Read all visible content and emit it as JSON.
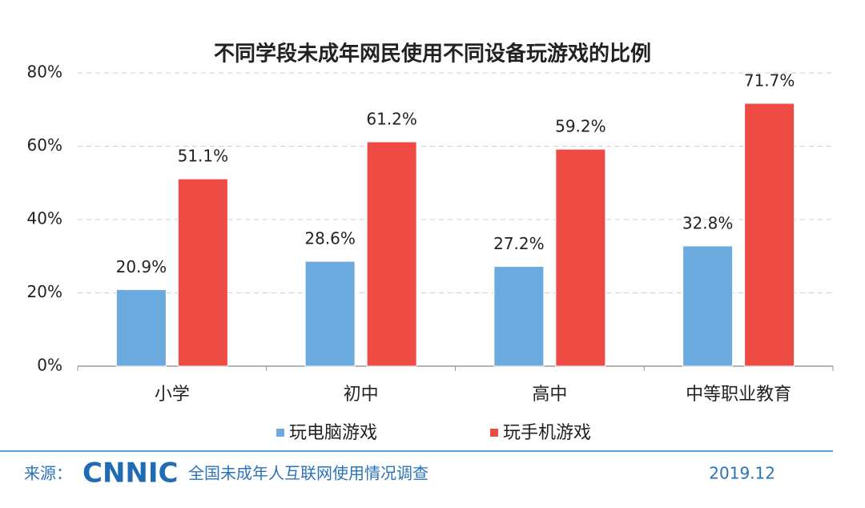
{
  "chart_data": {
    "type": "bar",
    "title": "不同学段未成年网民使用不同设备玩游戏的比例",
    "categories": [
      "小学",
      "初中",
      "高中",
      "中等职业教育"
    ],
    "series": [
      {
        "name": "玩电脑游戏",
        "color": "#6aaade",
        "values": [
          20.9,
          28.6,
          27.2,
          32.8
        ],
        "value_labels": [
          "20.9%",
          "28.6%",
          "27.2%",
          "32.8%"
        ]
      },
      {
        "name": "玩手机游戏",
        "color": "#ee4b44",
        "values": [
          51.1,
          61.2,
          59.2,
          71.7
        ],
        "value_labels": [
          "51.1%",
          "61.2%",
          "59.2%",
          "71.7%"
        ]
      }
    ],
    "ylim": [
      0,
      80
    ],
    "yticks": [
      {
        "value": 0,
        "label": "0%"
      },
      {
        "value": 20,
        "label": "20%"
      },
      {
        "value": 40,
        "label": "40%"
      },
      {
        "value": 60,
        "label": "60%"
      },
      {
        "value": 80,
        "label": "80%"
      }
    ],
    "grid": true,
    "legend": "bottom"
  },
  "footer": {
    "source_label": "来源：",
    "logo": "CNNIC",
    "survey": "全国未成年人互联网使用情况调查",
    "date": "2019.12"
  }
}
